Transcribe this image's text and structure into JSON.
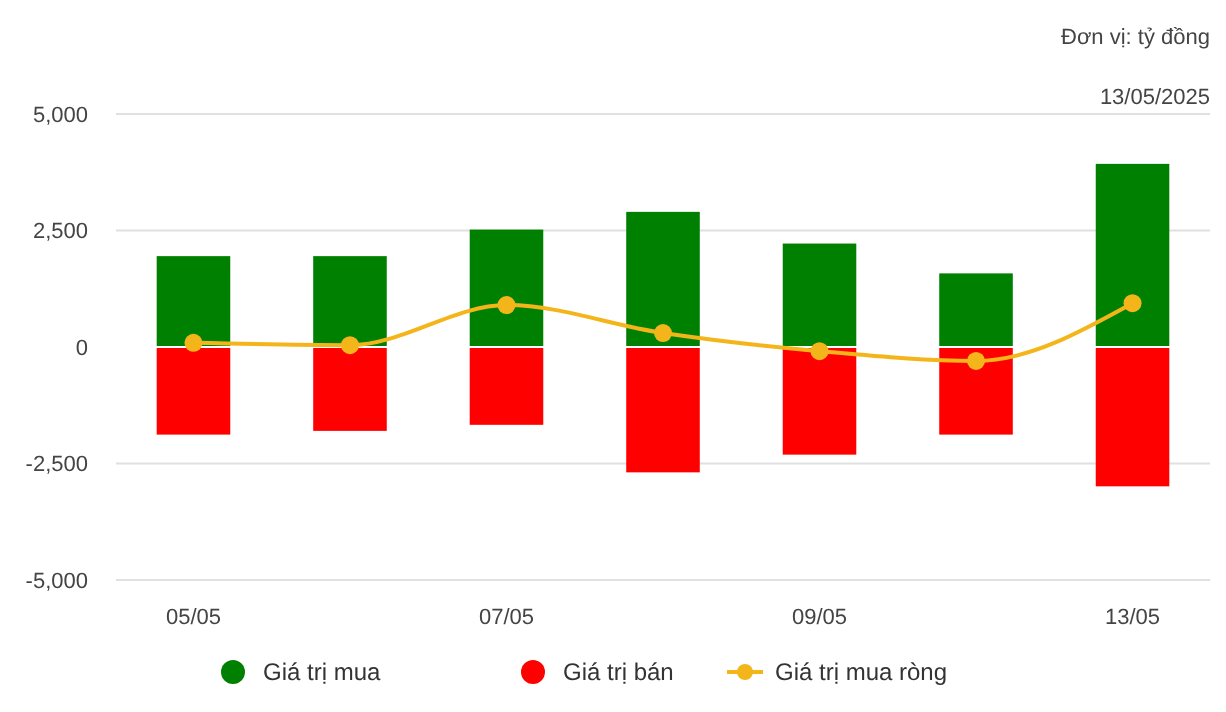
{
  "chart_data": {
    "type": "bar",
    "stacked": true,
    "categories": [
      "05/05",
      null,
      "07/05",
      null,
      "09/05",
      null,
      "13/05"
    ],
    "series": [
      {
        "name": "Giá trị mua",
        "color": "#008000",
        "values": [
          1950,
          1950,
          2520,
          2900,
          2220,
          1580,
          3930
        ]
      },
      {
        "name": "Giá trị bán",
        "color": "#ff0000",
        "values": [
          -1880,
          -1800,
          -1670,
          -2690,
          -2310,
          -1880,
          -2990
        ]
      },
      {
        "name": "Giá trị mua ròng",
        "type": "line",
        "color": "#f4b51b",
        "marker": "circle",
        "values": [
          90,
          40,
          900,
          300,
          -90,
          -300,
          940
        ]
      }
    ],
    "ylim": [
      -5000,
      5000
    ],
    "yticks": [
      {
        "value": -5000,
        "label": "-5,000"
      },
      {
        "value": -2500,
        "label": "-2,500"
      },
      0,
      {
        "value": 2500,
        "label": "2,500"
      },
      {
        "value": 5000,
        "label": "5,000"
      }
    ],
    "grid": "y",
    "legend": "bottom",
    "annotations": [
      "Đơn vị: tỷ đồng",
      "13/05/2025"
    ]
  }
}
